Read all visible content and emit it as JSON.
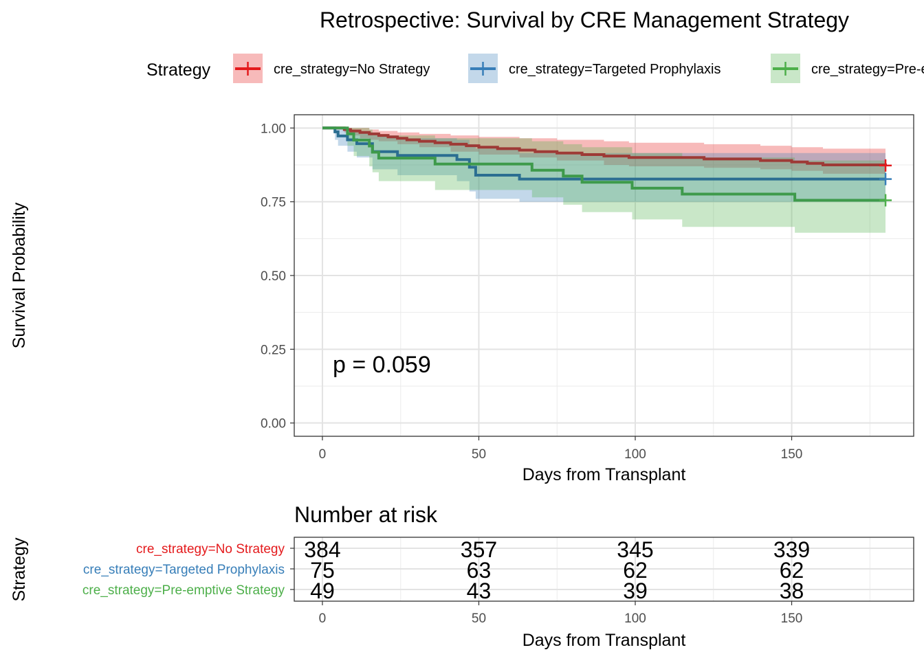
{
  "chart_data": [
    {
      "type": "line",
      "subtype": "kaplan-meier",
      "title": "Retrospective: Survival by CRE Management Strategy",
      "xlabel": "Days from Transplant",
      "ylabel": "Survival Probability",
      "xlim": [
        -9,
        189
      ],
      "ylim": [
        -0.045,
        1.045
      ],
      "x_ticks": [
        0,
        50,
        100,
        150
      ],
      "y_ticks": [
        0.0,
        0.25,
        0.5,
        0.75,
        1.0
      ],
      "y_tick_labels": [
        "0.00",
        "0.25",
        "0.50",
        "0.75",
        "1.00"
      ],
      "grid": true,
      "legend": {
        "title": "Strategy",
        "position": "top",
        "entries": [
          "cre_strategy=No Strategy",
          "cre_strategy=Targeted Prophylaxis",
          "cre_strategy=Pre-emptive Strategy"
        ]
      },
      "annotation": "p = 0.059",
      "series": [
        {
          "name": "cre_strategy=No Strategy",
          "color": "#E41A1C",
          "line_color": "#9E3A36",
          "censor_x": 180,
          "steps": [
            [
              0,
              1.0
            ],
            [
              7,
              0.995
            ],
            [
              9,
              0.99
            ],
            [
              12,
              0.985
            ],
            [
              15,
              0.98
            ],
            [
              18,
              0.975
            ],
            [
              21,
              0.97
            ],
            [
              24,
              0.965
            ],
            [
              27,
              0.96
            ],
            [
              31,
              0.955
            ],
            [
              36,
              0.95
            ],
            [
              41,
              0.945
            ],
            [
              46,
              0.94
            ],
            [
              50,
              0.935
            ],
            [
              56,
              0.93
            ],
            [
              63,
              0.925
            ],
            [
              68,
              0.92
            ],
            [
              75,
              0.915
            ],
            [
              83,
              0.91
            ],
            [
              90,
              0.905
            ],
            [
              98,
              0.9
            ],
            [
              122,
              0.895
            ],
            [
              140,
              0.89
            ],
            [
              150,
              0.885
            ],
            [
              155,
              0.88
            ],
            [
              160,
              0.875
            ],
            [
              180,
              0.873
            ]
          ],
          "ci_upper": [
            [
              0,
              1.0
            ],
            [
              7,
              1.0
            ],
            [
              9,
              1.0
            ],
            [
              12,
              1.0
            ],
            [
              15,
              0.995
            ],
            [
              18,
              0.99
            ],
            [
              24,
              0.985
            ],
            [
              31,
              0.98
            ],
            [
              41,
              0.975
            ],
            [
              50,
              0.97
            ],
            [
              63,
              0.965
            ],
            [
              75,
              0.96
            ],
            [
              90,
              0.955
            ],
            [
              98,
              0.95
            ],
            [
              122,
              0.945
            ],
            [
              140,
              0.94
            ],
            [
              150,
              0.935
            ],
            [
              160,
              0.93
            ],
            [
              180,
              0.91
            ]
          ],
          "ci_lower": [
            [
              0,
              1.0
            ],
            [
              7,
              0.985
            ],
            [
              9,
              0.975
            ],
            [
              12,
              0.965
            ],
            [
              15,
              0.96
            ],
            [
              18,
              0.955
            ],
            [
              24,
              0.945
            ],
            [
              31,
              0.935
            ],
            [
              41,
              0.92
            ],
            [
              50,
              0.91
            ],
            [
              63,
              0.9
            ],
            [
              75,
              0.89
            ],
            [
              90,
              0.875
            ],
            [
              98,
              0.87
            ],
            [
              122,
              0.865
            ],
            [
              140,
              0.86
            ],
            [
              150,
              0.855
            ],
            [
              160,
              0.845
            ],
            [
              180,
              0.84
            ]
          ]
        },
        {
          "name": "cre_strategy=Targeted Prophylaxis",
          "color": "#377EB8",
          "line_color": "#2B6E91",
          "censor_x": 180,
          "steps": [
            [
              0,
              1.0
            ],
            [
              4,
              0.987
            ],
            [
              5,
              0.973
            ],
            [
              8,
              0.96
            ],
            [
              11,
              0.947
            ],
            [
              16,
              0.92
            ],
            [
              24,
              0.907
            ],
            [
              43,
              0.893
            ],
            [
              47,
              0.867
            ],
            [
              49,
              0.84
            ],
            [
              63,
              0.827
            ],
            [
              180,
              0.827
            ]
          ],
          "ci_upper": [
            [
              0,
              1.0
            ],
            [
              4,
              1.0
            ],
            [
              5,
              1.0
            ],
            [
              8,
              0.99
            ],
            [
              11,
              0.985
            ],
            [
              16,
              0.975
            ],
            [
              24,
              0.965
            ],
            [
              43,
              0.96
            ],
            [
              47,
              0.945
            ],
            [
              49,
              0.93
            ],
            [
              63,
              0.915
            ],
            [
              180,
              0.915
            ]
          ],
          "ci_lower": [
            [
              0,
              1.0
            ],
            [
              4,
              0.96
            ],
            [
              5,
              0.94
            ],
            [
              8,
              0.92
            ],
            [
              11,
              0.9
            ],
            [
              16,
              0.86
            ],
            [
              24,
              0.84
            ],
            [
              43,
              0.82
            ],
            [
              47,
              0.785
            ],
            [
              49,
              0.76
            ],
            [
              63,
              0.75
            ],
            [
              180,
              0.75
            ]
          ]
        },
        {
          "name": "cre_strategy=Pre-emptive Strategy",
          "color": "#4DAF4A",
          "line_color": "#3E9A4B",
          "censor_x": 180,
          "steps": [
            [
              0,
              1.0
            ],
            [
              8,
              0.98
            ],
            [
              10,
              0.959
            ],
            [
              15,
              0.939
            ],
            [
              16,
              0.918
            ],
            [
              18,
              0.898
            ],
            [
              36,
              0.878
            ],
            [
              67,
              0.857
            ],
            [
              77,
              0.837
            ],
            [
              83,
              0.816
            ],
            [
              99,
              0.796
            ],
            [
              115,
              0.776
            ],
            [
              151,
              0.755
            ],
            [
              180,
              0.755
            ]
          ],
          "ci_upper": [
            [
              0,
              1.0
            ],
            [
              8,
              1.0
            ],
            [
              10,
              1.0
            ],
            [
              15,
              0.995
            ],
            [
              16,
              0.985
            ],
            [
              18,
              0.975
            ],
            [
              36,
              0.965
            ],
            [
              67,
              0.955
            ],
            [
              77,
              0.945
            ],
            [
              83,
              0.935
            ],
            [
              99,
              0.915
            ],
            [
              115,
              0.9
            ],
            [
              151,
              0.89
            ],
            [
              180,
              0.86
            ]
          ],
          "ci_lower": [
            [
              0,
              1.0
            ],
            [
              8,
              0.94
            ],
            [
              10,
              0.905
            ],
            [
              15,
              0.87
            ],
            [
              16,
              0.85
            ],
            [
              18,
              0.82
            ],
            [
              36,
              0.79
            ],
            [
              67,
              0.765
            ],
            [
              77,
              0.74
            ],
            [
              83,
              0.715
            ],
            [
              99,
              0.69
            ],
            [
              115,
              0.665
            ],
            [
              151,
              0.645
            ],
            [
              180,
              0.645
            ]
          ]
        }
      ]
    },
    {
      "type": "table",
      "title": "Number at risk",
      "xlabel": "Days from Transplant",
      "ylabel": "Strategy",
      "time_points": [
        0,
        50,
        100,
        150
      ],
      "rows": [
        {
          "label": "cre_strategy=No Strategy",
          "color": "#E41A1C",
          "values": [
            384,
            357,
            345,
            339
          ]
        },
        {
          "label": "cre_strategy=Targeted Prophylaxis",
          "color": "#377EB8",
          "values": [
            75,
            63,
            62,
            62
          ]
        },
        {
          "label": "cre_strategy=Pre-emptive Strategy",
          "color": "#4DAF4A",
          "values": [
            49,
            43,
            39,
            38
          ]
        }
      ]
    }
  ]
}
